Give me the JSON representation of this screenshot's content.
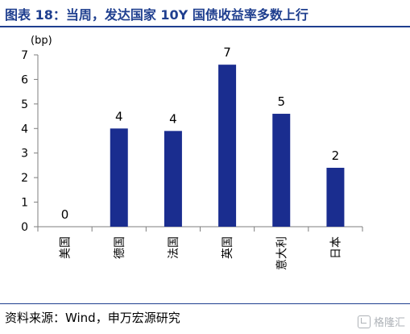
{
  "title": "图表 18：当周，发达国家 10Y 国债收益率多数上行",
  "source": "资料来源：Wind，申万宏源研究",
  "watermark": {
    "icon": "gelonghui-logo-icon",
    "text": "格隆汇"
  },
  "colors": {
    "title": "#1f3f8f",
    "bar": "#1a2d8f",
    "axis": "#7f7f7f"
  },
  "chart_data": {
    "type": "bar",
    "unit_label": "(bp)",
    "categories": [
      "美国",
      "德国",
      "法国",
      "英国",
      "意大利",
      "日本"
    ],
    "values": [
      0,
      4,
      3.9,
      6.6,
      4.6,
      2.4
    ],
    "data_labels": [
      "0",
      "4",
      "4",
      "7",
      "5",
      "2"
    ],
    "ylim": [
      0,
      7
    ],
    "yticks": [
      "0",
      "1",
      "2",
      "3",
      "4",
      "5",
      "6",
      "7"
    ],
    "grid": false,
    "legend": "none"
  }
}
